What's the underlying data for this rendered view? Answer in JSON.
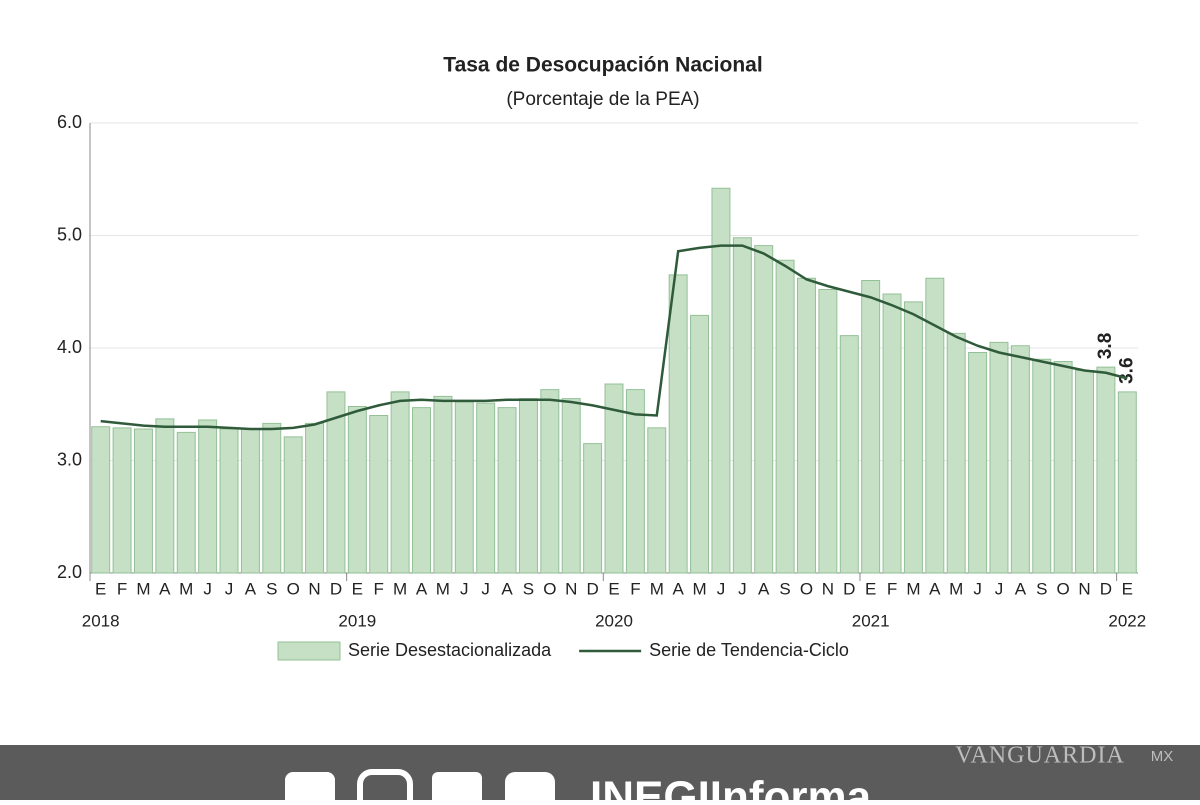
{
  "chart_data": {
    "type": "bar_line",
    "title": "Tasa de Desocupación Nacional",
    "subtitle": "(Porcentaje de la PEA)",
    "categories": [
      "E",
      "F",
      "M",
      "A",
      "M",
      "J",
      "J",
      "A",
      "S",
      "O",
      "N",
      "D",
      "E",
      "F",
      "M",
      "A",
      "M",
      "J",
      "J",
      "A",
      "S",
      "O",
      "N",
      "D",
      "E",
      "F",
      "M",
      "A",
      "M",
      "J",
      "J",
      "A",
      "S",
      "O",
      "N",
      "D",
      "E",
      "F",
      "M",
      "A",
      "M",
      "J",
      "J",
      "A",
      "S",
      "O",
      "N",
      "D",
      "E"
    ],
    "years": [
      "2018",
      "2019",
      "2020",
      "2021",
      "2022"
    ],
    "series": [
      {
        "name": "Serie Desestacionalizada",
        "type": "bar",
        "color": "#c6e0c6",
        "stroke": "#93c097",
        "values": [
          3.3,
          3.29,
          3.28,
          3.37,
          3.25,
          3.36,
          3.28,
          3.28,
          3.33,
          3.21,
          3.33,
          3.61,
          3.48,
          3.4,
          3.61,
          3.47,
          3.57,
          3.52,
          3.51,
          3.47,
          3.55,
          3.63,
          3.55,
          3.15,
          3.68,
          3.63,
          3.29,
          4.65,
          4.29,
          5.42,
          4.98,
          4.91,
          4.78,
          4.62,
          4.52,
          4.11,
          4.6,
          4.48,
          4.41,
          4.62,
          4.13,
          3.96,
          4.05,
          4.02,
          3.9,
          3.88,
          3.8,
          3.83,
          3.61
        ],
        "value_labels": [
          null,
          null,
          null,
          null,
          null,
          null,
          null,
          null,
          null,
          null,
          null,
          null,
          null,
          null,
          null,
          null,
          null,
          null,
          null,
          null,
          null,
          null,
          null,
          null,
          null,
          null,
          null,
          null,
          null,
          null,
          null,
          null,
          null,
          null,
          null,
          null,
          null,
          null,
          null,
          null,
          null,
          null,
          null,
          null,
          null,
          null,
          null,
          "3.8",
          "3.6"
        ]
      },
      {
        "name": "Serie de Tendencia-Ciclo",
        "type": "line",
        "color": "#2f5b3b",
        "values": [
          3.35,
          3.33,
          3.31,
          3.3,
          3.3,
          3.3,
          3.29,
          3.28,
          3.28,
          3.29,
          3.32,
          3.38,
          3.44,
          3.49,
          3.53,
          3.54,
          3.53,
          3.53,
          3.53,
          3.54,
          3.54,
          3.54,
          3.52,
          3.49,
          3.45,
          3.41,
          3.4,
          4.86,
          4.89,
          4.91,
          4.91,
          4.84,
          4.73,
          4.61,
          4.55,
          4.5,
          4.45,
          4.38,
          4.3,
          4.2,
          4.1,
          4.02,
          3.96,
          3.92,
          3.88,
          3.84,
          3.8,
          3.78,
          3.73
        ]
      }
    ],
    "ylim": [
      2,
      6
    ],
    "yticks": [
      {
        "value": 2,
        "label": "2.0"
      },
      {
        "value": 3,
        "label": "3.0"
      },
      {
        "value": 4,
        "label": "4.0"
      },
      {
        "value": 5,
        "label": "5.0"
      },
      {
        "value": 6,
        "label": "6.0"
      }
    ],
    "grid": true
  },
  "footer": {
    "brand": "VANGUARDIA",
    "brand_suffix": "MX",
    "logo": "INEGIInforma"
  }
}
